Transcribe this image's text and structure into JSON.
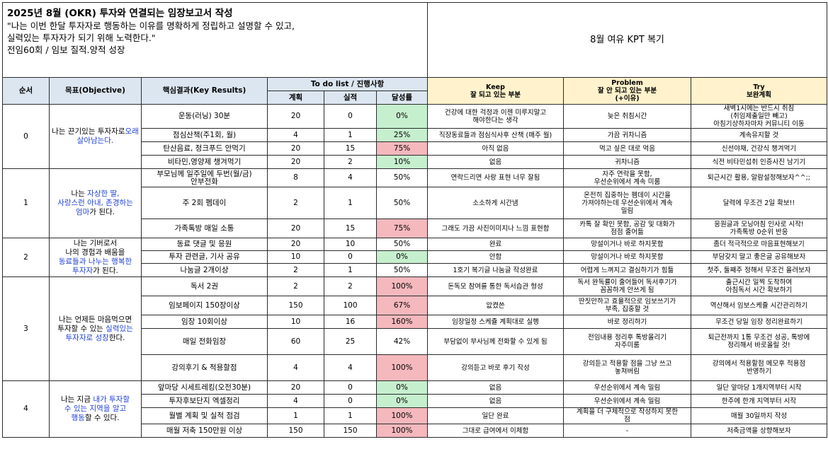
{
  "header": {
    "title_line": "2025년 8월 (OKR) 투자와 연결되는 임장보고서 작성",
    "quote_line1": "\"나는 이번 한달 투자자로 행동하는 이유를 명확하게 정립하고 설명할 수 있고,",
    "quote_line2": "실력있는 투자자가 되기 위해 노력한다.\"",
    "goal_line": "전임60회 / 임보 질적.양적 성장",
    "kpt_title": "8월 여유 KPT 복기"
  },
  "columns": {
    "order": "순서",
    "objective": "목표(Objective)",
    "key_results": "핵심결과(Key Results)",
    "todo": "To do list / 진행사항",
    "plan": "계획",
    "actual": "실적",
    "rate": "달성률",
    "keep_title": "Keep",
    "keep_sub": "잘 되고 있는 부분",
    "problem_title": "Problem",
    "problem_sub": "잘 안 되고 있는 부분",
    "problem_sub2": "(+이유)",
    "try_title": "Try",
    "try_sub": "보완계획"
  },
  "objectives": [
    {
      "order": "0",
      "pre": "나는 끈기있는 투자자로",
      "blue": "오래 살아남는다.",
      "post": ""
    },
    {
      "order": "1",
      "pre": "나는 ",
      "blue": "자상한 딸,\n사랑스런 아내, 존경하는\n엄마",
      "post": "가 된다."
    },
    {
      "order": "2",
      "pre": "나는 기버로서\n나의 경험과 배움을\n",
      "blue": "동료들과 나누는 행복한\n투자자",
      "post": "가 된다."
    },
    {
      "order": "3",
      "pre": "나는 언제든 마음먹으면\n투자할 수 있는 ",
      "blue": "실력있는\n투자자로 성장",
      "post": "한다."
    },
    {
      "order": "4",
      "pre": "나는 지금 ",
      "blue": "내가 투자할\n수 있는 지역을 알고\n행동",
      "post": "할 수 있다."
    }
  ],
  "rows": [
    {
      "kr": "운동(러닝) 30분",
      "plan": "20",
      "actual": "0",
      "rate": "0%",
      "keep": "건강에 대한 걱정과 이젠 미루지말고\n해야한다는 생각",
      "problem": "늦은 취침시간",
      "try": "새벽1시에는 반드시 취침\n(취임제출일만 빼고)\n아침기상하자마자 커뮤니티 이동"
    },
    {
      "kr": "점심산책(주1회, 월)",
      "plan": "4",
      "actual": "1",
      "rate": "25%",
      "keep": "직장동료들과 점심식사후 산책 (매주 월)",
      "problem": "가끔 귀차니즘",
      "try": "계속유지할 것"
    },
    {
      "kr": "탄산음료, 정크푸드 안먹기",
      "plan": "20",
      "actual": "15",
      "rate": "75%",
      "keep": "아직 없음",
      "problem": "먹고 싶은 대로 먹음",
      "try": "신선야채, 건강식 챙겨먹기"
    },
    {
      "kr": "비타민,영양제 챙겨먹기",
      "plan": "20",
      "actual": "2",
      "rate": "10%",
      "keep": "없음",
      "problem": "귀차니즘",
      "try": "식전 비타민섭취 인증사진 남기기"
    },
    {
      "kr": "부모님께 일주일에 두번(월/금)\n안부전화",
      "plan": "8",
      "actual": "4",
      "rate": "50%",
      "keep": "연락드리면 사랑 표현 너무 잘됨",
      "problem": "자주 연락을 못함,\n우선순위에서 계속 미룸",
      "try": "퇴근시간 활용, 알람설정해보자^^;;"
    },
    {
      "kr": "주 2회 펨데이",
      "plan": "2",
      "actual": "1",
      "rate": "50%",
      "keep": "소소하게 시간냄",
      "problem": "온전히 집중하는 펨데이 시간을\n가져야하는데 우선순위에서 계속\n밀림",
      "try": "달력에 무조건 2일 확보!!"
    },
    {
      "kr": "가족톡방 매일 소통",
      "plan": "20",
      "actual": "15",
      "rate": "75%",
      "keep": "그래도 가끔 사진이미지나 느낌 표현함",
      "problem": "카톡 잘 확인 못함, 공감 및 대화가\n점점 줄어듦",
      "try": "응원글과 모닝아침 인사로 시작!\n가족톡방 0순위 반응"
    },
    {
      "kr": "동료 댓글 및 응원",
      "plan": "20",
      "actual": "10",
      "rate": "50%",
      "keep": "완료",
      "problem": "망설이거나 바로 하지못함",
      "try": "좀더 적극적으로 마음표현해보기"
    },
    {
      "kr": "투자 관련글, 기사 공유",
      "plan": "10",
      "actual": "0",
      "rate": "0%",
      "keep": "안함",
      "problem": "망설이거나 바로 하지못함",
      "try": "부담갖지 말고 좋은글 공유해보자"
    },
    {
      "kr": "나눔글 2개이상",
      "plan": "2",
      "actual": "1",
      "rate": "50%",
      "keep": "1호기 복기글 나눔글 작성완료",
      "problem": "어렵게 느껴지고 결심하기가 힘듦",
      "try": "첫주, 둘째주 정해서 무조건 올려보자"
    },
    {
      "kr": "독서 2권",
      "plan": "2",
      "actual": "2",
      "rate": "100%",
      "keep": "돈독모 참여를 통한 독서습관 형성",
      "problem": "독서 완독률이 줄어들어 독서후기가\n꼼꼼하게 안쓰게 됨",
      "try": "출근시간 일찍 도착하여\n아침독서 시간 확보하기"
    },
    {
      "kr": "임보페이지 150장이상",
      "plan": "150",
      "actual": "100",
      "rate": "67%",
      "keep": "앖켰쓴",
      "problem": "딴짓안하고 효율적으로 임보쓰기가\n부족, 집중할 것",
      "try": "역산해서 임보스케쥴 시간관리하기"
    },
    {
      "kr": "임장 10회이상",
      "plan": "10",
      "actual": "16",
      "rate": "160%",
      "keep": "임장일정 스케쥴 계획대로 실행",
      "problem": "바로 정리하기",
      "try": "무조건 당일 임장 정리완료하기"
    },
    {
      "kr": "매일 전화임장",
      "plan": "60",
      "actual": "25",
      "rate": "42%",
      "keep": "부담없이 부사님께 전화할 수 있게 됨",
      "problem": "전임내용 정리후 톡방올리기\n자주미룸",
      "try": "퇴근전까지 1통 무조건 성공, 톡방에\n정리해서 바로올릴 것!"
    },
    {
      "kr": "강의후기 & 적용할점",
      "plan": "4",
      "actual": "4",
      "rate": "100%",
      "keep": "강의듣고 바로 후기 작성",
      "problem": "강의듣고 적용할 점을 그냥 쓰고\n놓쳐버림",
      "try": "강의에서 적용할점 메모후 적용점\n반영하기"
    },
    {
      "kr": "앞마당 시세트레킹(오전30분)",
      "plan": "20",
      "actual": "0",
      "rate": "0%",
      "keep": "없음",
      "problem": "우선순위에서 계속 밀림",
      "try": "일단 앞마당 1개지역부터 시작"
    },
    {
      "kr": "투자후보단지 엑셀정리",
      "plan": "4",
      "actual": "0",
      "rate": "0%",
      "keep": "없음",
      "problem": "우선순위에서 계속 밀림",
      "try": "한주에 한개 지역부터 시작"
    },
    {
      "kr": "월별 계획 및 실적 점검",
      "plan": "1",
      "actual": "1",
      "rate": "100%",
      "keep": "일단 완료",
      "problem": "계획을 더 구체적으로 작성하지 못한\n점",
      "try": "매월 30일까지 작성"
    },
    {
      "kr": "매월 저축 150만원 이상",
      "plan": "150",
      "actual": "150",
      "rate": "100%",
      "keep": "그대로 급여에서 이체함",
      "problem": "-",
      "try": "저축금액을 상향해보자"
    }
  ],
  "colors": {
    "header_blue": "#dce6f1",
    "header_yellow": "#fff2cc",
    "good_green": "#c6efce",
    "low_red": "#f4b8bd",
    "objective_blue": "#1f3fd6"
  }
}
